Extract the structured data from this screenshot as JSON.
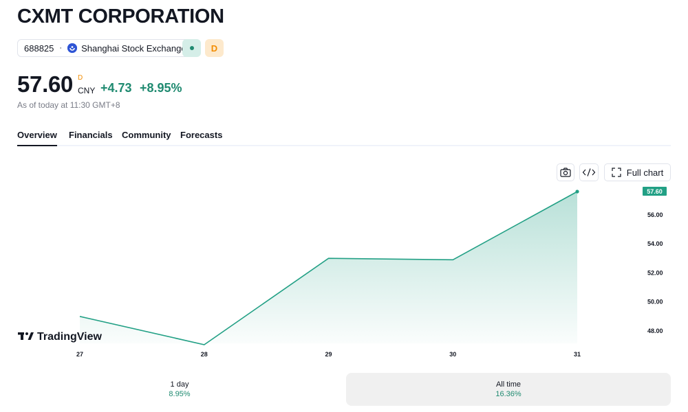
{
  "header": {
    "title": "CXMT CORPORATION",
    "ticker": "688825",
    "separator": "·",
    "exchange": "Shanghai Stock Exchange",
    "delay_badge": "D"
  },
  "quote": {
    "price": "57.60",
    "price_superscript": "D",
    "currency": "CNY",
    "change": "+4.73",
    "change_percent": "+8.95%",
    "as_of": "As of today at 11:30 GMT+8"
  },
  "tabs": [
    "Overview",
    "Financials",
    "Community",
    "Forecasts"
  ],
  "toolbar": {
    "full_chart_label": "Full chart"
  },
  "watermark": "TradingView",
  "colors": {
    "accent": "#22a085",
    "positive": "#1f8a70",
    "delay": "#f28c00"
  },
  "chart_data": {
    "type": "area",
    "x": [
      "27",
      "28",
      "29",
      "30",
      "31"
    ],
    "values": [
      49.0,
      47.05,
      53.0,
      52.9,
      57.6
    ],
    "y_ticks": [
      "48.00",
      "50.00",
      "52.00",
      "54.00",
      "56.00"
    ],
    "ylim": [
      47.05,
      57.6
    ],
    "last_label": "57.60",
    "grid": false
  },
  "ranges": [
    {
      "label": "1 day",
      "value": "8.95%"
    },
    {
      "label": "All time",
      "value": "16.36%"
    }
  ]
}
